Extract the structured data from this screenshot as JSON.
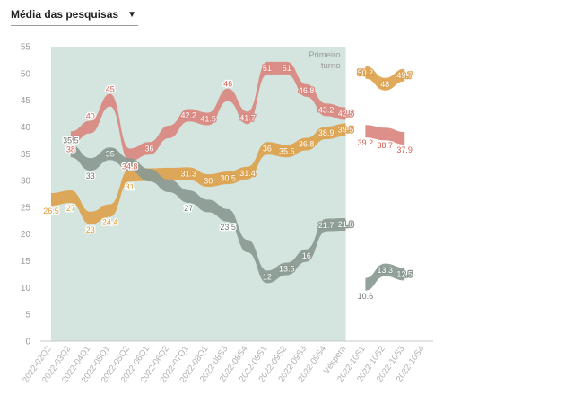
{
  "dropdown": {
    "label": "Média das pesquisas",
    "icon": "caret-down-icon"
  },
  "chart_data": {
    "type": "line",
    "title": "",
    "xlabel": "",
    "ylabel": "",
    "ylim": [
      0,
      55
    ],
    "yticks": [
      0,
      5,
      10,
      15,
      20,
      25,
      30,
      35,
      40,
      45,
      50,
      55
    ],
    "grid": false,
    "categories": [
      "2022-02Q2",
      "2022-03Q2",
      "2022-04Q1",
      "2022-05Q1",
      "2022-05Q2",
      "2022-06Q1",
      "2022-06Q2",
      "2022-07Q1",
      "2022-08Q1",
      "2022-08S3",
      "2022-08S4",
      "2022-09S1",
      "2022-09S2",
      "2022-09S3",
      "2022-09S4",
      "Véspera",
      "2022-10S1",
      "2022-10S2",
      "2022-10S3",
      "2022-10S4"
    ],
    "first_round_annotation": "Primeiro turno",
    "first_round_shading": {
      "from": "2022-02Q2",
      "to": "Véspera",
      "color": "#d4e5df"
    },
    "series": [
      {
        "color": "#d9877f",
        "label_color": "#d35e50",
        "values": [
          null,
          38,
          40,
          45,
          34.8,
          36,
          null,
          42.2,
          41.5,
          46,
          41.7,
          51,
          51,
          46.8,
          43.2,
          42.5,
          39.2,
          38.7,
          37.9,
          null
        ]
      },
      {
        "color": "#dda24e",
        "label_color": "#dd9a32",
        "values": [
          26.5,
          27,
          23,
          24.4,
          31,
          null,
          null,
          31.3,
          30,
          30.5,
          31.4,
          36,
          35.5,
          36.8,
          38.9,
          39.5,
          50.2,
          48,
          49.7,
          null
        ]
      },
      {
        "color": "#8a9a91",
        "label_color": "#6e7873",
        "values": [
          null,
          35.5,
          33,
          35,
          null,
          null,
          null,
          27,
          null,
          23.5,
          null,
          12,
          13.5,
          16,
          21.7,
          21.8,
          10.6,
          13.3,
          12.5,
          null
        ]
      }
    ],
    "labels": [
      {
        "s": 0,
        "x": 1,
        "text": "38",
        "pos": "below"
      },
      {
        "s": 0,
        "x": 2,
        "text": "40",
        "pos": "above"
      },
      {
        "s": 0,
        "x": 3,
        "text": "45",
        "pos": "above"
      },
      {
        "s": 0,
        "x": 4,
        "text": "34.8",
        "pos": "below"
      },
      {
        "s": 0,
        "x": 5,
        "text": "36",
        "pos": "on"
      },
      {
        "s": 0,
        "x": 7,
        "text": "42.2",
        "pos": "on"
      },
      {
        "s": 0,
        "x": 8,
        "text": "41.5",
        "pos": "on"
      },
      {
        "s": 0,
        "x": 9,
        "text": "46",
        "pos": "above"
      },
      {
        "s": 0,
        "x": 10,
        "text": "41.7",
        "pos": "on"
      },
      {
        "s": 0,
        "x": 11,
        "text": "51",
        "pos": "on"
      },
      {
        "s": 0,
        "x": 12,
        "text": "51",
        "pos": "on"
      },
      {
        "s": 0,
        "x": 13,
        "text": "46.8",
        "pos": "on"
      },
      {
        "s": 0,
        "x": 14,
        "text": "43.2",
        "pos": "on"
      },
      {
        "s": 0,
        "x": 15,
        "text": "42.5",
        "pos": "on"
      },
      {
        "s": 0,
        "x": 16,
        "text": "39.2",
        "pos": "below"
      },
      {
        "s": 0,
        "x": 17,
        "text": "38.7",
        "pos": "below"
      },
      {
        "s": 0,
        "x": 18,
        "text": "37.9",
        "pos": "below"
      },
      {
        "s": 1,
        "x": 0,
        "text": "26.5",
        "pos": "below"
      },
      {
        "s": 1,
        "x": 1,
        "text": "27",
        "pos": "below"
      },
      {
        "s": 1,
        "x": 2,
        "text": "23",
        "pos": "below"
      },
      {
        "s": 1,
        "x": 3,
        "text": "24.4",
        "pos": "below"
      },
      {
        "s": 1,
        "x": 4,
        "text": "31",
        "pos": "below"
      },
      {
        "s": 1,
        "x": 7,
        "text": "31.3",
        "pos": "on"
      },
      {
        "s": 1,
        "x": 8,
        "text": "30",
        "pos": "on"
      },
      {
        "s": 1,
        "x": 9,
        "text": "30.5",
        "pos": "on"
      },
      {
        "s": 1,
        "x": 10,
        "text": "31.4",
        "pos": "on"
      },
      {
        "s": 1,
        "x": 11,
        "text": "36",
        "pos": "on"
      },
      {
        "s": 1,
        "x": 12,
        "text": "35.5",
        "pos": "on"
      },
      {
        "s": 1,
        "x": 13,
        "text": "36.8",
        "pos": "on"
      },
      {
        "s": 1,
        "x": 14,
        "text": "38.9",
        "pos": "on"
      },
      {
        "s": 1,
        "x": 15,
        "text": "39.5",
        "pos": "on"
      },
      {
        "s": 1,
        "x": 16,
        "text": "50.2",
        "pos": "on"
      },
      {
        "s": 1,
        "x": 17,
        "text": "48",
        "pos": "on"
      },
      {
        "s": 1,
        "x": 18,
        "text": "49.7",
        "pos": "on"
      },
      {
        "s": 2,
        "x": 1,
        "text": "35.5",
        "pos": "above"
      },
      {
        "s": 2,
        "x": 2,
        "text": "33",
        "pos": "below"
      },
      {
        "s": 2,
        "x": 3,
        "text": "35",
        "pos": "on"
      },
      {
        "s": 2,
        "x": 7,
        "text": "27",
        "pos": "below"
      },
      {
        "s": 2,
        "x": 9,
        "text": "23.5",
        "pos": "below"
      },
      {
        "s": 2,
        "x": 11,
        "text": "12",
        "pos": "on"
      },
      {
        "s": 2,
        "x": 12,
        "text": "13.5",
        "pos": "on"
      },
      {
        "s": 2,
        "x": 13,
        "text": "16",
        "pos": "on"
      },
      {
        "s": 2,
        "x": 14,
        "text": "21.7",
        "pos": "on"
      },
      {
        "s": 2,
        "x": 15,
        "text": "21.8",
        "pos": "on"
      },
      {
        "s": 2,
        "x": 16,
        "text": "10.6",
        "pos": "below"
      },
      {
        "s": 2,
        "x": 17,
        "text": "13.3",
        "pos": "on"
      },
      {
        "s": 2,
        "x": 18,
        "text": "12.5",
        "pos": "on"
      }
    ]
  }
}
